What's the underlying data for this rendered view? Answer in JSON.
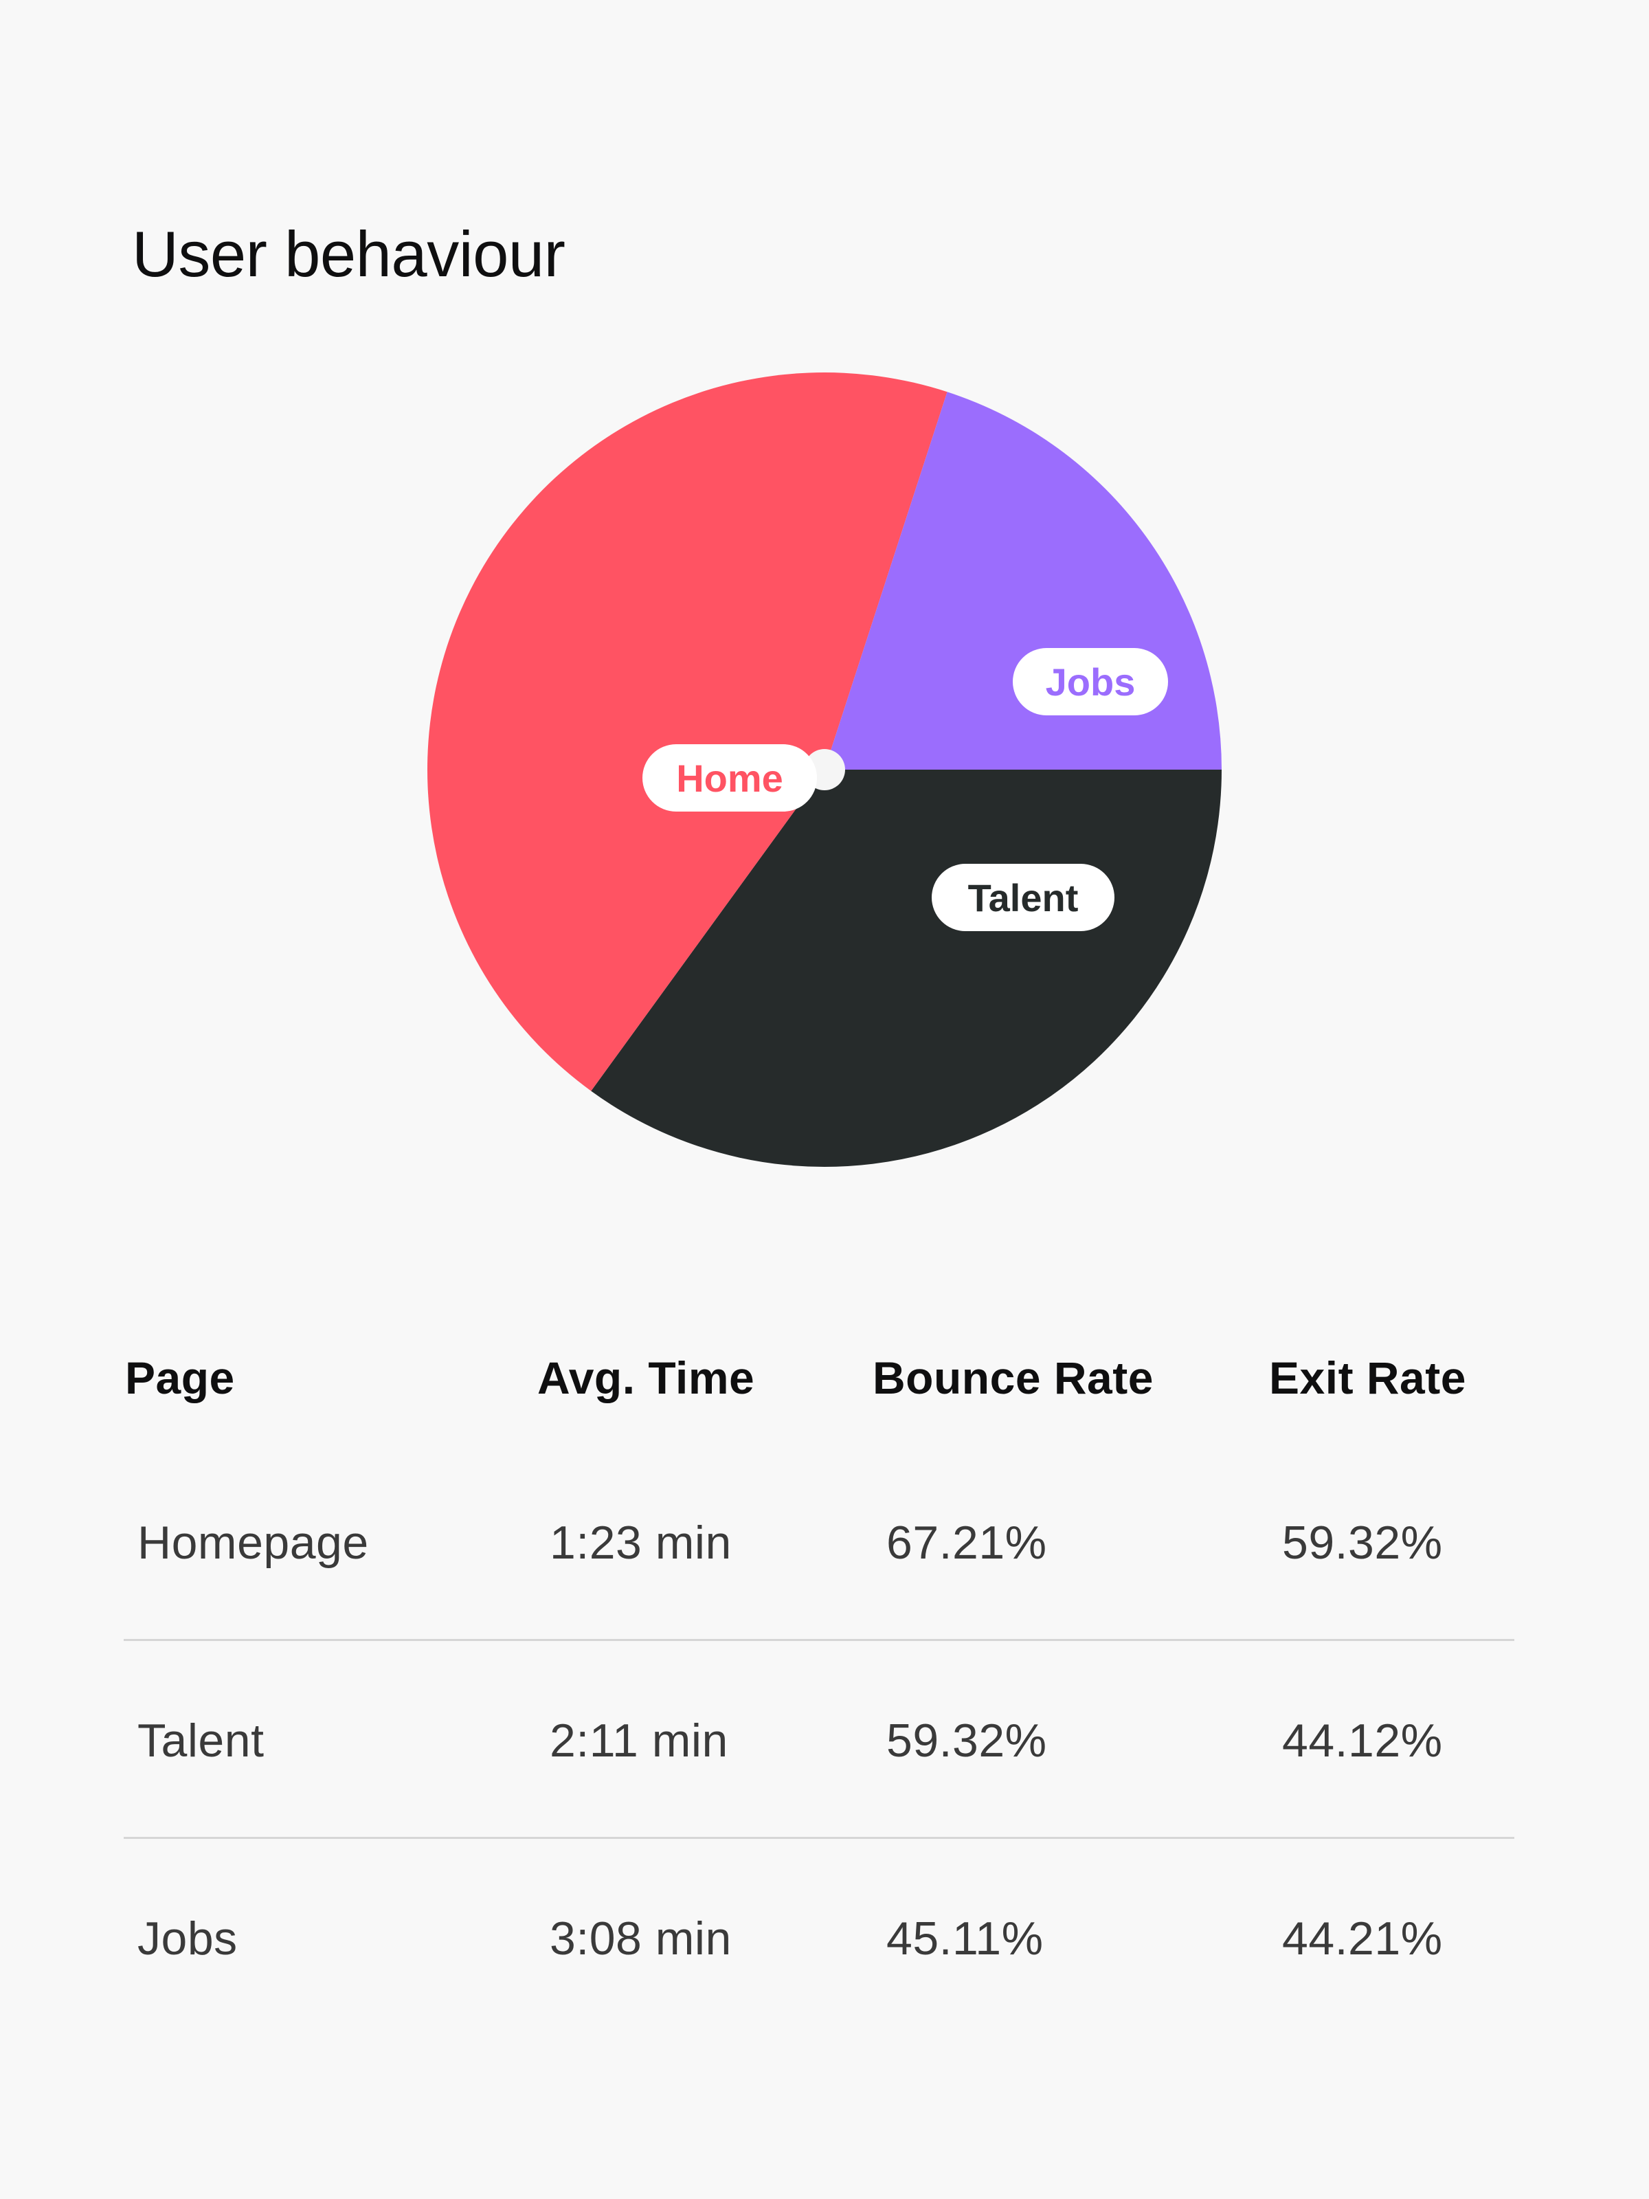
{
  "colors": {
    "home": "#ff5363",
    "jobs": "#9b6dfd",
    "talent": "#262b2b",
    "background": "#f8f8f8",
    "label_bg": "#ffffff"
  },
  "chart_data": {
    "type": "pie",
    "title": "User behaviour",
    "slices": [
      {
        "name": "Home",
        "value": 45,
        "color": "#ff5363"
      },
      {
        "name": "Jobs",
        "value": 20,
        "color": "#9b6dfd"
      },
      {
        "name": "Talent",
        "value": 35,
        "color": "#262b2b"
      }
    ],
    "legend": "none"
  },
  "table": {
    "headers": [
      "Page",
      "Avg. Time",
      "Bounce Rate",
      "Exit Rate"
    ],
    "rows": [
      [
        "Homepage",
        "1:23 min",
        "67.21%",
        "59.32%"
      ],
      [
        "Talent",
        "2:11 min",
        "59.32%",
        "44.12%"
      ],
      [
        "Jobs",
        "3:08 min",
        "45.11%",
        "44.21%"
      ]
    ]
  }
}
